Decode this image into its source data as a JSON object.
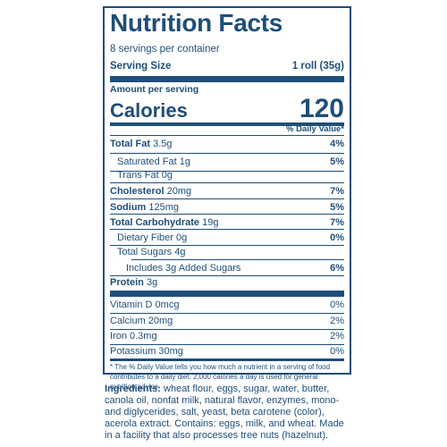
{
  "label": {
    "title": "Nutrition Facts",
    "servings_per_container": "8 servings per container",
    "serving_size_label": "Serving Size",
    "serving_size_value": "1 roll (35g)",
    "amount_per_serving": "Amount per serving",
    "calories_label": "Calories",
    "calories_value": "120",
    "daily_value_header": "% Daily Value*",
    "total_fat_label": "Total Fat",
    "total_fat_amount": "3.5g",
    "total_fat_dv": "4%",
    "saturated_fat": "Saturated Fat 1g",
    "saturated_fat_dv": "5%",
    "trans_fat": "Trans Fat 0g",
    "cholesterol_label": "Cholesterol",
    "cholesterol_amount": "20mg",
    "cholesterol_dv": "7%",
    "sodium_label": "Sodium",
    "sodium_amount": "125mg",
    "sodium_dv": "5%",
    "carb_label": "Total Carbohydrate",
    "carb_amount": "19g",
    "carb_dv": "7%",
    "fiber": "Dietary Fiber 0g",
    "fiber_dv": "0%",
    "total_sugars": "Total Sugars 4g",
    "added_sugars": "Includes 3g Added Sugars",
    "added_sugars_dv": "6%",
    "protein_label": "Protein",
    "protein_amount": "3g",
    "vitamin_d": "Vitamin D 0mcg",
    "vitamin_d_dv": "0%",
    "calcium": "Calcium 20mg",
    "calcium_dv": "2%",
    "iron": "Iron 0.3mg",
    "iron_dv": "2%",
    "potassium": "Potassium 30mg",
    "potassium_dv": "0%",
    "footnote": "* The % Daily Value tells you how much a nutrient in a serving of food contributes to a daily diet. 2,000 calories a day is used for general nutrition advice."
  },
  "ingredients": {
    "label": "Ingredients:",
    "text": " wheat flour, eggs, sugar, water, butter, canola oil, nonfat milk, natural flavor, enzymes, mono- and diglycerides, salt, yeast, beta carotene (color), acerola extract. Contains: eggs, milk, and wheat. Made in a facility that also processes tree nuts (hazelnut)."
  },
  "colors": {
    "ink": "#1f4e79",
    "background": "#ffffff"
  }
}
